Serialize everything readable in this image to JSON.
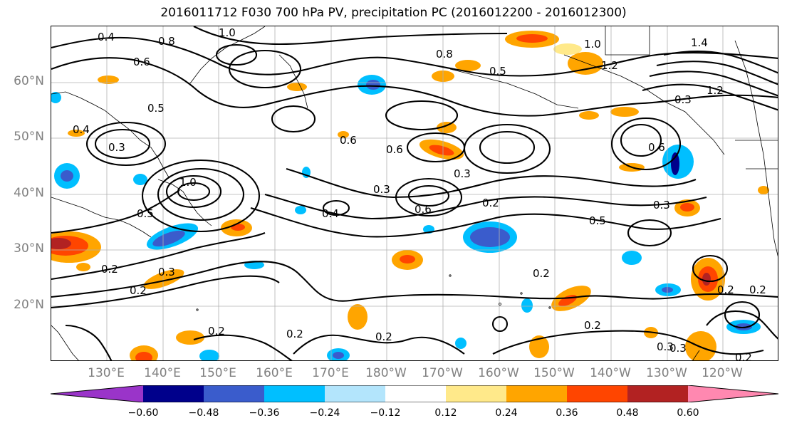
{
  "title": "2016011712 F030 700 hPa PV, precipitation PC (2016012200 - 2016012300)",
  "lat_labels": [
    "60°N",
    "50°N",
    "40°N",
    "30°N",
    "20°N"
  ],
  "lon_labels": [
    "130°E",
    "140°E",
    "150°E",
    "160°E",
    "170°E",
    "180°W",
    "170°W",
    "160°W",
    "150°W",
    "140°W",
    "130°W",
    "120°W"
  ],
  "colorbar": {
    "ticks": [
      "−0.60",
      "−0.48",
      "−0.36",
      "−0.24",
      "−0.12",
      "0.12",
      "0.24",
      "0.36",
      "0.48",
      "0.60"
    ],
    "colors": [
      "#9a34c9",
      "#00008b",
      "#3a5ccc",
      "#00bfff",
      "#b3e5fc",
      "#ffffff",
      "#ffe98a",
      "#ffa500",
      "#ff4500",
      "#b22222",
      "#ff88b0"
    ]
  },
  "contour_labels": [
    "0.4",
    "1.0",
    "0.8",
    "0.6",
    "0.5",
    "0.8",
    "0.5",
    "1.0",
    "1.2",
    "1.4",
    "1.2",
    "0.3",
    "0.6",
    "0.3",
    "0.2",
    "0.3",
    "0.5",
    "0.2",
    "0.2",
    "0.3",
    "0.2",
    "0.2",
    "0.2",
    "0.2",
    "0.2",
    "0.3",
    "0.4",
    "0.6",
    "0.6",
    "0.3",
    "0.2",
    "0.5",
    "1.0",
    "0.4",
    "0.3",
    "0.2",
    "0.6",
    "0.3",
    "0.2"
  ]
}
